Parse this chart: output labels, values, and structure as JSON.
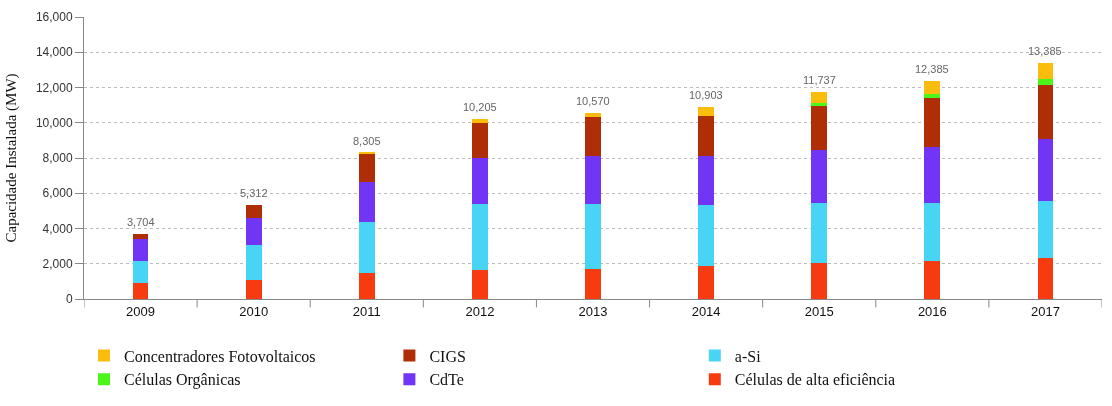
{
  "chart_data": {
    "type": "bar",
    "stacked": true,
    "ylabel": "Capacidade Instalada (MW)",
    "categories": [
      "2009",
      "2010",
      "2011",
      "2012",
      "2013",
      "2014",
      "2015",
      "2016",
      "2017"
    ],
    "series": [
      {
        "name": "Células de alta eficiência",
        "color": "#f53b0f",
        "values": [
          900,
          1050,
          1450,
          1620,
          1680,
          1900,
          2050,
          2180,
          2330
        ]
      },
      {
        "name": "a-Si",
        "color": "#48d4f5",
        "values": [
          1260,
          2000,
          2930,
          3750,
          3690,
          3420,
          3380,
          3250,
          3230
        ]
      },
      {
        "name": "CdTe",
        "color": "#7035f5",
        "values": [
          1220,
          1550,
          2270,
          2610,
          2730,
          2780,
          3030,
          3210,
          3510
        ]
      },
      {
        "name": "CIGS",
        "color": "#b02e05",
        "values": [
          324,
          712,
          1600,
          2010,
          2200,
          2300,
          2510,
          2790,
          3080
        ]
      },
      {
        "name": "Células Orgânicas",
        "color": "#4cf51a",
        "values": [
          0,
          0,
          0,
          0,
          0,
          0,
          170,
          220,
          330
        ]
      },
      {
        "name": "Concentradores Fotovoltaicos",
        "color": "#fbbd0d",
        "values": [
          0,
          0,
          55,
          215,
          270,
          503,
          597,
          735,
          905
        ]
      }
    ],
    "totals": [
      "3,704",
      "5,312",
      "8,305",
      "10,205",
      "10,570",
      "10,903",
      "11,737",
      "12,385",
      "13,385"
    ],
    "ylim": [
      0,
      16000
    ],
    "yticks": [
      0,
      {
        "value": 2000,
        "label": "2,000"
      },
      {
        "value": 4000,
        "label": "4,000"
      },
      {
        "value": 6000,
        "label": "6,000"
      },
      {
        "value": 8000,
        "label": "8,000"
      },
      {
        "value": 10000,
        "label": "10,000"
      },
      {
        "value": 12000,
        "label": "12,000"
      },
      {
        "value": 14000,
        "label": "14,000"
      },
      {
        "value": 16000,
        "label": "16,000"
      }
    ],
    "grid": "y",
    "legend": "bottom"
  }
}
